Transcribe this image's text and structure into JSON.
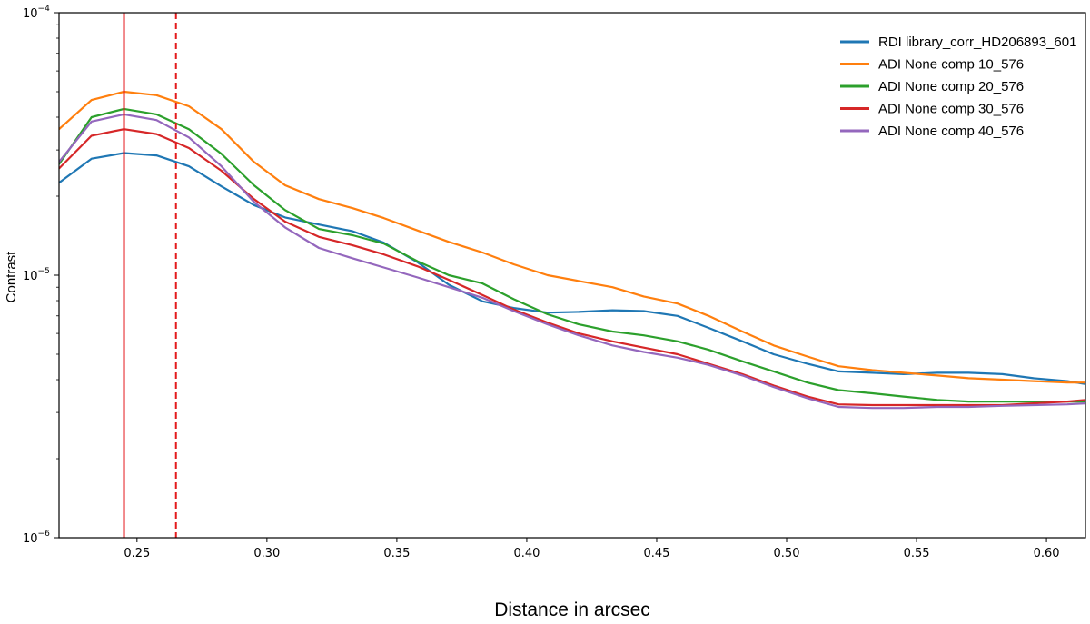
{
  "chart_data": {
    "type": "line",
    "xlabel": "Distance in arcsec",
    "ylabel": "Contrast",
    "yscale": "log",
    "xlim": [
      0.22,
      0.615
    ],
    "ylim": [
      1e-06,
      0.0001
    ],
    "x_ticks": [
      0.25,
      0.3,
      0.35,
      0.4,
      0.45,
      0.5,
      0.55,
      0.6
    ],
    "x_tick_labels": [
      "0.25",
      "0.30",
      "0.35",
      "0.40",
      "0.45",
      "0.50",
      "0.55",
      "0.60"
    ],
    "y_ticks": [
      {
        "value": 0.0001,
        "base": "10",
        "exp": "−4"
      },
      {
        "value": 1e-05,
        "base": "10",
        "exp": "−5"
      },
      {
        "value": 1e-06,
        "base": "10",
        "exp": "−6"
      }
    ],
    "grid": false,
    "legend_position": "top-right",
    "vlines": [
      {
        "x": 0.245,
        "color": "#e41a1c",
        "style": "solid"
      },
      {
        "x": 0.265,
        "color": "#e41a1c",
        "style": "dashed"
      }
    ],
    "x": [
      0.22,
      0.2325,
      0.245,
      0.2575,
      0.27,
      0.2825,
      0.295,
      0.307,
      0.32,
      0.333,
      0.345,
      0.358,
      0.37,
      0.383,
      0.395,
      0.408,
      0.42,
      0.433,
      0.445,
      0.458,
      0.47,
      0.483,
      0.495,
      0.508,
      0.52,
      0.533,
      0.545,
      0.558,
      0.57,
      0.583,
      0.595,
      0.608,
      0.615
    ],
    "series": [
      {
        "name": "RDI library_corr_HD206893_601",
        "color": "#1f77b4",
        "values": [
          2.25e-05,
          2.78e-05,
          2.92e-05,
          2.86e-05,
          2.6e-05,
          2.18e-05,
          1.85e-05,
          1.66e-05,
          1.56e-05,
          1.47e-05,
          1.33e-05,
          1.12e-05,
          9.2e-06,
          7.95e-06,
          7.5e-06,
          7.2e-06,
          7.25e-06,
          7.35e-06,
          7.3e-06,
          7e-06,
          6.3e-06,
          5.6e-06,
          5e-06,
          4.6e-06,
          4.3e-06,
          4.25e-06,
          4.2e-06,
          4.25e-06,
          4.25e-06,
          4.2e-06,
          4.05e-06,
          3.95e-06,
          3.85e-06
        ]
      },
      {
        "name": "ADI None comp 10_576",
        "color": "#ff7f0e",
        "values": [
          3.6e-05,
          4.65e-05,
          5e-05,
          4.85e-05,
          4.4e-05,
          3.6e-05,
          2.7e-05,
          2.2e-05,
          1.95e-05,
          1.8e-05,
          1.65e-05,
          1.48e-05,
          1.34e-05,
          1.22e-05,
          1.1e-05,
          1e-05,
          9.5e-06,
          9e-06,
          8.3e-06,
          7.8e-06,
          7e-06,
          6.1e-06,
          5.4e-06,
          4.9e-06,
          4.5e-06,
          4.35e-06,
          4.25e-06,
          4.15e-06,
          4.05e-06,
          4e-06,
          3.95e-06,
          3.9e-06,
          3.9e-06
        ]
      },
      {
        "name": "ADI None comp 20_576",
        "color": "#2ca02c",
        "values": [
          2.65e-05,
          4e-05,
          4.3e-05,
          4.1e-05,
          3.6e-05,
          2.9e-05,
          2.2e-05,
          1.77e-05,
          1.5e-05,
          1.42e-05,
          1.32e-05,
          1.13e-05,
          1e-05,
          9.3e-06,
          8.1e-06,
          7.1e-06,
          6.5e-06,
          6.1e-06,
          5.9e-06,
          5.6e-06,
          5.2e-06,
          4.7e-06,
          4.3e-06,
          3.9e-06,
          3.65e-06,
          3.55e-06,
          3.45e-06,
          3.35e-06,
          3.3e-06,
          3.3e-06,
          3.3e-06,
          3.3e-06,
          3.3e-06
        ]
      },
      {
        "name": "ADI None comp 30_576",
        "color": "#d62728",
        "values": [
          2.55e-05,
          3.4e-05,
          3.6e-05,
          3.45e-05,
          3.05e-05,
          2.5e-05,
          1.95e-05,
          1.6e-05,
          1.4e-05,
          1.3e-05,
          1.2e-05,
          1.08e-05,
          9.6e-06,
          8.4e-06,
          7.4e-06,
          6.6e-06,
          6e-06,
          5.6e-06,
          5.3e-06,
          5e-06,
          4.6e-06,
          4.2e-06,
          3.8e-06,
          3.45e-06,
          3.22e-06,
          3.2e-06,
          3.2e-06,
          3.2e-06,
          3.2e-06,
          3.2e-06,
          3.25e-06,
          3.3e-06,
          3.35e-06
        ]
      },
      {
        "name": "ADI None comp 40_576",
        "color": "#9467bd",
        "values": [
          2.7e-05,
          3.85e-05,
          4.1e-05,
          3.9e-05,
          3.35e-05,
          2.6e-05,
          1.9e-05,
          1.52e-05,
          1.27e-05,
          1.16e-05,
          1.07e-05,
          9.8e-06,
          9e-06,
          8.2e-06,
          7.3e-06,
          6.5e-06,
          5.9e-06,
          5.4e-06,
          5.1e-06,
          4.85e-06,
          4.55e-06,
          4.15e-06,
          3.75e-06,
          3.4e-06,
          3.15e-06,
          3.12e-06,
          3.12e-06,
          3.15e-06,
          3.15e-06,
          3.18e-06,
          3.2e-06,
          3.22e-06,
          3.25e-06
        ]
      }
    ]
  }
}
